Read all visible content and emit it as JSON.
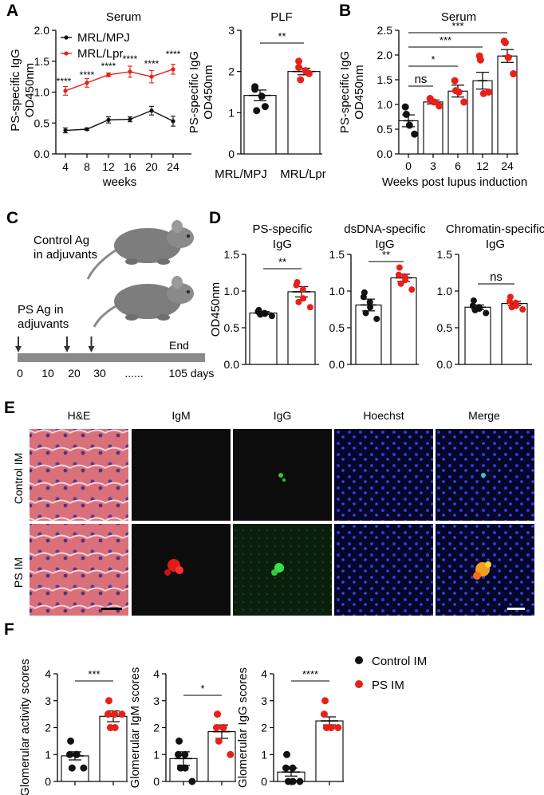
{
  "panels": {
    "A": "A",
    "B": "B",
    "C": "C",
    "D": "D",
    "E": "E",
    "F": "F"
  },
  "colors": {
    "control": "#111111",
    "treated": "#e8201a",
    "bar_fill": "#ffffff"
  },
  "chart_data": [
    {
      "id": "A_serum",
      "type": "line",
      "title": "Serum",
      "xlabel": "weeks",
      "ylabel": [
        "PS-specific IgG",
        "OD450nm"
      ],
      "x": [
        4,
        8,
        12,
        16,
        20,
        24
      ],
      "ylim": [
        0,
        2.0
      ],
      "yticks": [
        "0.0",
        "0.5",
        "1.0",
        "1.5",
        "2.0"
      ],
      "series": [
        {
          "name": "MRL/MPJ",
          "values": [
            0.38,
            0.4,
            0.55,
            0.56,
            0.7,
            0.53
          ],
          "err": [
            0.04,
            0.02,
            0.05,
            0.04,
            0.07,
            0.08
          ]
        },
        {
          "name": "MRL/Lpr",
          "values": [
            1.02,
            1.15,
            1.28,
            1.33,
            1.25,
            1.37
          ],
          "err": [
            0.07,
            0.07,
            0.03,
            0.09,
            0.1,
            0.08
          ]
        }
      ],
      "significance": [
        "****",
        "****",
        "****",
        "****",
        "****",
        "****"
      ],
      "legend": "top-left"
    },
    {
      "id": "A_plf",
      "type": "bar",
      "title": "PLF",
      "ylabel": [
        "PS-specific IgG",
        "OD450nm"
      ],
      "categories": [
        "MRL/MPJ",
        "MRL/Lpr"
      ],
      "values": [
        1.42,
        2.0
      ],
      "err": [
        0.13,
        0.08
      ],
      "points": [
        [
          1.63,
          1.57,
          1.4,
          1.15,
          1.05
        ],
        [
          2.25,
          2.1,
          2.02,
          1.95,
          1.8
        ]
      ],
      "ylim": [
        0,
        3
      ],
      "yticks": [
        "0",
        "1",
        "2",
        "3"
      ],
      "significance": [
        {
          "pair": [
            0,
            1
          ],
          "label": "**"
        }
      ]
    },
    {
      "id": "B_serum",
      "type": "bar",
      "title": "Serum",
      "xlabel": "Weeks post lupus induction",
      "ylabel": [
        "PS-specific IgG",
        "OD450nm"
      ],
      "categories": [
        "0",
        "3",
        "6",
        "12",
        "24"
      ],
      "values": [
        0.67,
        1.05,
        1.27,
        1.48,
        1.98
      ],
      "err": [
        0.12,
        0.04,
        0.12,
        0.17,
        0.13
      ],
      "points": [
        [
          0.95,
          0.8,
          0.58,
          0.4
        ],
        [
          1.12,
          1.08,
          1.05,
          0.97
        ],
        [
          1.48,
          1.28,
          1.25,
          1.05
        ],
        [
          1.98,
          1.9,
          1.22,
          1.25
        ],
        [
          2.28,
          2.25,
          1.95,
          1.62
        ]
      ],
      "ylim": [
        0,
        2.5
      ],
      "yticks": [
        "0.0",
        "0.5",
        "1.0",
        "1.5",
        "2.0",
        "2.5"
      ],
      "significance": [
        {
          "pair": [
            0,
            1
          ],
          "label": "ns"
        },
        {
          "pair": [
            0,
            2
          ],
          "label": "*"
        },
        {
          "pair": [
            0,
            3
          ],
          "label": "***"
        },
        {
          "pair": [
            0,
            4
          ],
          "label": "***"
        }
      ]
    },
    {
      "id": "D_ps",
      "type": "bar",
      "title": [
        "PS-specific",
        "IgG"
      ],
      "ylabel": "OD450nm",
      "values": [
        0.7,
        0.99
      ],
      "err": [
        0.02,
        0.07
      ],
      "points": [
        [
          0.74,
          0.72,
          0.7,
          0.69,
          0.68,
          0.66
        ],
        [
          1.12,
          1.08,
          1.02,
          0.9,
          0.85,
          0.78
        ]
      ],
      "ylim": [
        0,
        1.5
      ],
      "yticks": [
        "0.0",
        "0.5",
        "1.0",
        "1.5"
      ],
      "significance": [
        {
          "pair": [
            0,
            1
          ],
          "label": "**"
        }
      ]
    },
    {
      "id": "D_dsdna",
      "type": "bar",
      "title": [
        "dsDNA-specific",
        "IgG"
      ],
      "values": [
        0.81,
        1.18
      ],
      "err": [
        0.08,
        0.05
      ],
      "points": [
        [
          0.98,
          0.92,
          0.85,
          0.78,
          0.7,
          0.62
        ],
        [
          1.32,
          1.22,
          1.2,
          1.15,
          1.1,
          1.02
        ]
      ],
      "ylim": [
        0,
        1.5
      ],
      "yticks": [
        "0.0",
        "0.5",
        "1.0",
        "1.5"
      ],
      "significance": [
        {
          "pair": [
            0,
            1
          ],
          "label": "**"
        }
      ]
    },
    {
      "id": "D_chromatin",
      "type": "bar",
      "title": [
        "Chromatin-specific",
        "IgG"
      ],
      "values": [
        0.78,
        0.83
      ],
      "err": [
        0.03,
        0.03
      ],
      "points": [
        [
          0.87,
          0.8,
          0.78,
          0.76,
          0.74,
          0.7
        ],
        [
          0.92,
          0.86,
          0.84,
          0.8,
          0.78,
          0.75
        ]
      ],
      "ylim": [
        0,
        1.5
      ],
      "yticks": [
        "0.0",
        "0.5",
        "1.0",
        "1.5"
      ],
      "significance": [
        {
          "pair": [
            0,
            1
          ],
          "label": "ns"
        }
      ]
    },
    {
      "id": "F_activity",
      "type": "bar",
      "ylabel": "Glomerular activity scores",
      "values": [
        0.95,
        2.42
      ],
      "err": [
        0.15,
        0.2
      ],
      "points": [
        [
          1.5,
          1.0,
          1.0,
          1.0,
          0.5,
          0.5
        ],
        [
          3.0,
          2.5,
          2.5,
          2.0,
          2.0,
          2.5
        ]
      ],
      "ylim": [
        0,
        4
      ],
      "yticks": [
        "0",
        "1",
        "2",
        "3",
        "4"
      ],
      "significance": [
        {
          "pair": [
            0,
            1
          ],
          "label": "***"
        }
      ]
    },
    {
      "id": "F_igm",
      "type": "bar",
      "ylabel": "Glomerular IgM scores",
      "values": [
        0.85,
        1.85
      ],
      "err": [
        0.25,
        0.25
      ],
      "points": [
        [
          1.5,
          1.0,
          1.0,
          0.5,
          0.5,
          0.0
        ],
        [
          2.5,
          2.0,
          2.0,
          2.0,
          1.5,
          1.0
        ]
      ],
      "ylim": [
        0,
        4
      ],
      "yticks": [
        "0",
        "1",
        "2",
        "3",
        "4"
      ],
      "significance": [
        {
          "pair": [
            0,
            1
          ],
          "label": "*"
        }
      ]
    },
    {
      "id": "F_igg",
      "type": "bar",
      "ylabel": "Glomerular IgG scores",
      "values": [
        0.35,
        2.25
      ],
      "err": [
        0.15,
        0.15
      ],
      "points": [
        [
          1.0,
          0.5,
          0.5,
          0.0,
          0.0,
          0.0
        ],
        [
          3.0,
          2.5,
          2.0,
          2.0,
          2.0,
          2.0
        ]
      ],
      "ylim": [
        0,
        4
      ],
      "yticks": [
        "0",
        "1",
        "2",
        "3",
        "4"
      ],
      "significance": [
        {
          "pair": [
            0,
            1
          ],
          "label": "****"
        }
      ]
    }
  ],
  "panel_c": {
    "control_label": [
      "Control Ag",
      "in adjuvants"
    ],
    "ps_label": [
      "PS Ag in",
      "adjuvants"
    ],
    "end_label": "End",
    "timeline_ticks": [
      "0",
      "10",
      "20",
      "30",
      "......",
      "105 days"
    ],
    "arrow_days": [
      0,
      20,
      30
    ]
  },
  "panel_e": {
    "columns": [
      "H&E",
      "IgM",
      "IgG",
      "Hoechst",
      "Merge"
    ],
    "rows": [
      "Control IM",
      "PS IM"
    ]
  },
  "panel_f_legend": [
    {
      "name": "Control IM",
      "color": "#111111"
    },
    {
      "name": "PS IM",
      "color": "#e8201a"
    }
  ]
}
